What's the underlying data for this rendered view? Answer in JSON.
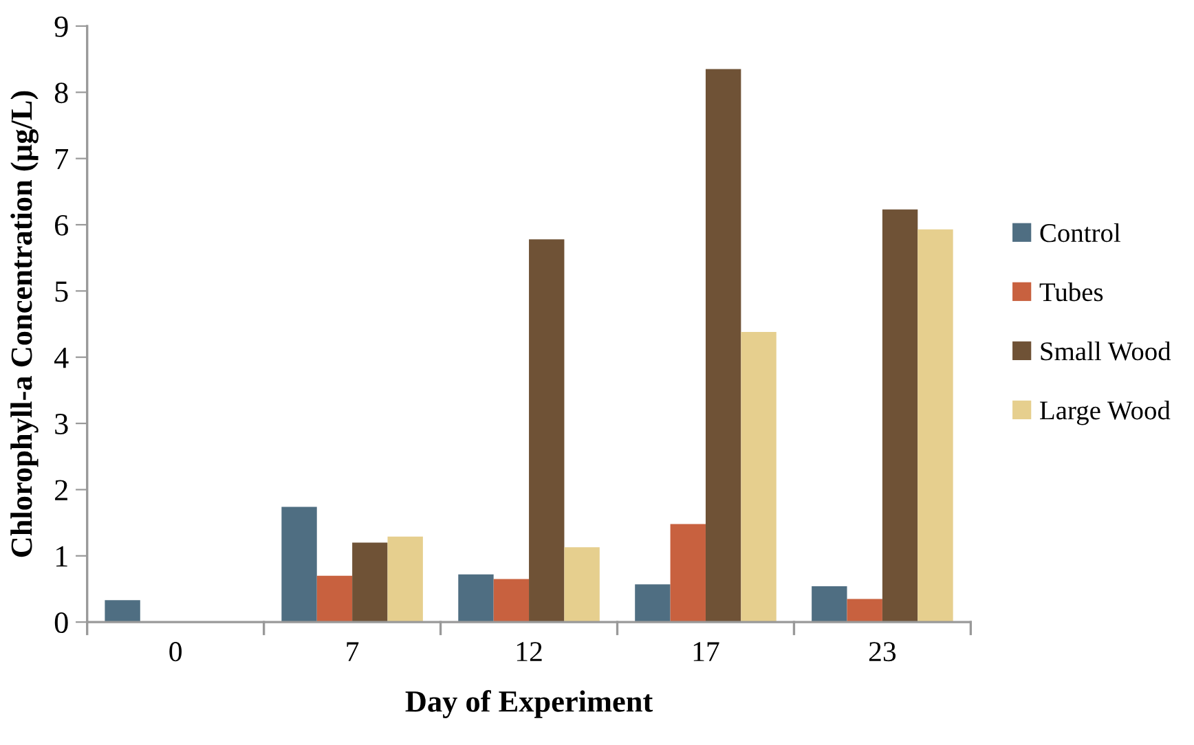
{
  "chart_data": {
    "type": "bar",
    "xlabel": "Day of Experiment",
    "ylabel": "Chlorophyll-a Concentration (µg/L)",
    "categories": [
      "0",
      "7",
      "12",
      "17",
      "23"
    ],
    "series": [
      {
        "name": "Control",
        "color": "#4f6e82",
        "values": [
          0.33,
          1.74,
          0.72,
          0.57,
          0.54
        ]
      },
      {
        "name": "Tubes",
        "color": "#c8613f",
        "values": [
          null,
          0.7,
          0.65,
          1.48,
          0.35
        ]
      },
      {
        "name": "Small Wood",
        "color": "#6f5236",
        "values": [
          null,
          1.2,
          5.78,
          8.35,
          6.23
        ]
      },
      {
        "name": "Large Wood",
        "color": "#e6cf8e",
        "values": [
          null,
          1.29,
          1.13,
          4.38,
          5.93
        ]
      }
    ],
    "ylim": [
      0,
      9
    ],
    "yticks": [
      0,
      1,
      2,
      3,
      4,
      5,
      6,
      7,
      8,
      9
    ],
    "grid": false,
    "legend": "right"
  }
}
